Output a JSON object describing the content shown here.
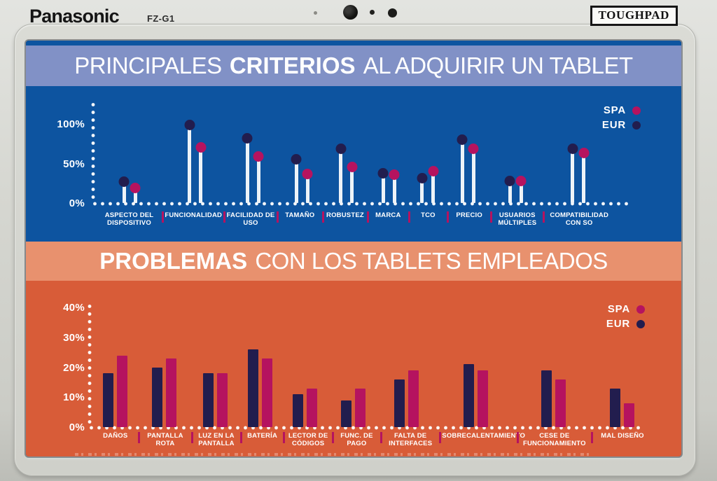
{
  "device": {
    "brand": "Panasonic",
    "model": "FZ-G1",
    "badge": "TOUGHPAD"
  },
  "sections": {
    "top_title": {
      "pre": "PRINCIPALES",
      "bold": "CRITERIOS",
      "post": "AL ADQUIRIR UN TABLET"
    },
    "bottom_title": {
      "bold": "PROBLEMAS",
      "post": "CON LOS TABLETS EMPLEADOS"
    }
  },
  "colors": {
    "blue_background": "#0d54a0",
    "blue_title_band": "#8191c6",
    "orange_background": "#d85c38",
    "orange_title_band": "#e8916e",
    "spa": "#b5135f",
    "eur": "#221d4e",
    "axis_white": "#ffffff"
  },
  "chart_data": [
    {
      "id": "criteria",
      "type": "lollipop",
      "title": "PRINCIPALES CRITERIOS AL ADQUIRIR UN TABLET",
      "categories": [
        "ASPECTO DEL DISPOSITIVO",
        "FUNCIONALIDAD",
        "FACILIDAD DE USO",
        "TAMAÑO",
        "ROBUSTEZ",
        "MARCA",
        "TCO",
        "PRECIO",
        "USUARIOS MÚLTIPLES",
        "COMPATIBILIDAD CON SO"
      ],
      "series": [
        {
          "name": "EUR",
          "color": "#221d4e",
          "values": [
            28,
            100,
            83,
            57,
            70,
            39,
            33,
            81,
            29,
            70
          ]
        },
        {
          "name": "SPA",
          "color": "#b5135f",
          "values": [
            20,
            72,
            60,
            38,
            47,
            37,
            42,
            70,
            29,
            65
          ]
        }
      ],
      "unit": "%",
      "ylim": [
        0,
        115
      ],
      "yticks": [
        {
          "label": "100%",
          "v": 100
        },
        {
          "label": "50%",
          "v": 50
        },
        {
          "label": "0%",
          "v": 0
        }
      ],
      "grid": false,
      "legend_position": "top-right",
      "legend": [
        {
          "label": "SPA",
          "color": "#b5135f"
        },
        {
          "label": "EUR",
          "color": "#221d4e"
        }
      ]
    },
    {
      "id": "problems",
      "type": "bar",
      "title": "PROBLEMAS CON LOS TABLETS EMPLEADOS",
      "categories": [
        "DAÑOS",
        "PANTALLA ROTA",
        "LUZ EN LA PANTALLA",
        "BATERÍA",
        "LECTOR DE CÓDIGOS",
        "FUNC. DE PAGO",
        "FALTA DE INTERFACES",
        "SOBRECALENTAMIENTO",
        "CESE DE FUNCIONAMIENTO",
        "MAL DISEÑO"
      ],
      "series": [
        {
          "name": "EUR",
          "color": "#221d4e",
          "values": [
            18,
            20,
            18,
            26,
            11,
            9,
            16,
            21,
            19,
            13
          ]
        },
        {
          "name": "SPA",
          "color": "#b5135f",
          "values": [
            24,
            23,
            18,
            23,
            13,
            13,
            19,
            19,
            16,
            8
          ]
        }
      ],
      "unit": "%",
      "ylim": [
        0,
        45
      ],
      "yticks": [
        {
          "label": "40%",
          "v": 40
        },
        {
          "label": "30%",
          "v": 30
        },
        {
          "label": "20%",
          "v": 20
        },
        {
          "label": "10%",
          "v": 10
        },
        {
          "label": "0%",
          "v": 0
        }
      ],
      "grid": false,
      "legend_position": "top-right",
      "legend": [
        {
          "label": "SPA",
          "color": "#b5135f"
        },
        {
          "label": "EUR",
          "color": "#221d4e"
        }
      ]
    }
  ]
}
